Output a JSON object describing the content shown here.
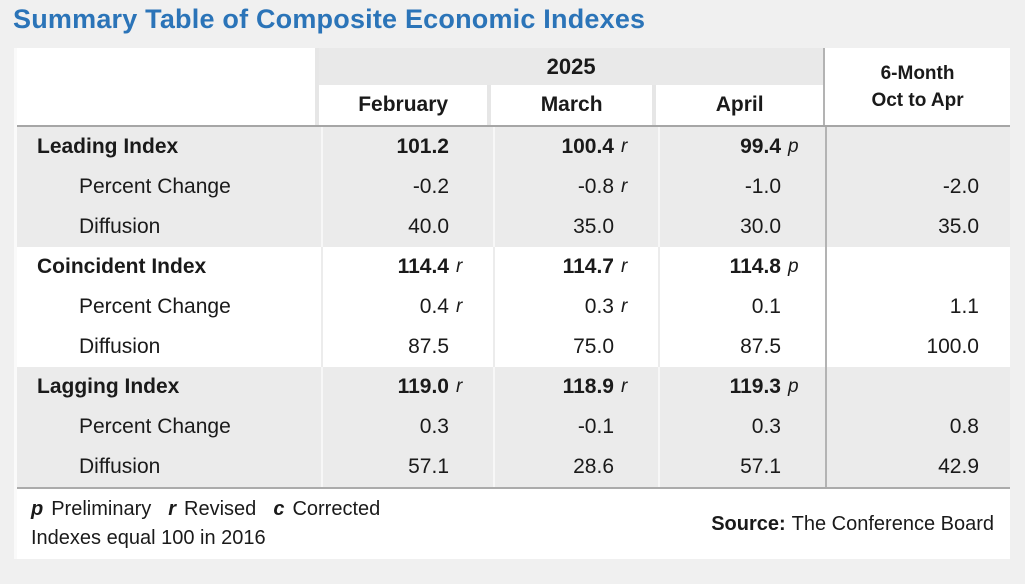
{
  "page": {
    "title": "Summary Table of Composite Economic Indexes"
  },
  "colors": {
    "title_blue": "#2b74b8",
    "band_gray": "#ebebeb",
    "page_bg": "#f0f0f0",
    "column_divider": "#b3b3b3",
    "body_border": "#a6a6a6"
  },
  "table": {
    "year": "2025",
    "months": {
      "feb": "February",
      "mar": "March",
      "apr": "April"
    },
    "six_month": {
      "line1": "6-Month",
      "line2": "Oct to Apr"
    },
    "sections": [
      {
        "rows": [
          {
            "label": "Leading Index",
            "feb": {
              "v": "101.2"
            },
            "mar": {
              "v": "100.4",
              "a": "r"
            },
            "apr": {
              "v": "99.4",
              "a": "p"
            },
            "six": ""
          },
          {
            "label": "Percent Change",
            "feb": {
              "v": "-0.2"
            },
            "mar": {
              "v": "-0.8",
              "a": "r"
            },
            "apr": {
              "v": "-1.0"
            },
            "six": "-2.0"
          },
          {
            "label": "Diffusion",
            "feb": {
              "v": "40.0"
            },
            "mar": {
              "v": "35.0"
            },
            "apr": {
              "v": "30.0"
            },
            "six": "35.0"
          }
        ]
      },
      {
        "rows": [
          {
            "label": "Coincident Index",
            "feb": {
              "v": "114.4",
              "a": "r"
            },
            "mar": {
              "v": "114.7",
              "a": "r"
            },
            "apr": {
              "v": "114.8",
              "a": "p"
            },
            "six": ""
          },
          {
            "label": "Percent Change",
            "feb": {
              "v": "0.4",
              "a": "r"
            },
            "mar": {
              "v": "0.3",
              "a": "r"
            },
            "apr": {
              "v": "0.1"
            },
            "six": "1.1"
          },
          {
            "label": "Diffusion",
            "feb": {
              "v": "87.5"
            },
            "mar": {
              "v": "75.0"
            },
            "apr": {
              "v": "87.5"
            },
            "six": "100.0"
          }
        ]
      },
      {
        "rows": [
          {
            "label": "Lagging Index",
            "feb": {
              "v": "119.0",
              "a": "r"
            },
            "mar": {
              "v": "118.9",
              "a": "r"
            },
            "apr": {
              "v": "119.3",
              "a": "p"
            },
            "six": ""
          },
          {
            "label": "Percent Change",
            "feb": {
              "v": "0.3"
            },
            "mar": {
              "v": "-0.1"
            },
            "apr": {
              "v": "0.3"
            },
            "six": "0.8"
          },
          {
            "label": "Diffusion",
            "feb": {
              "v": "57.1"
            },
            "mar": {
              "v": "28.6"
            },
            "apr": {
              "v": "57.1"
            },
            "six": "42.9"
          }
        ]
      }
    ]
  },
  "footer": {
    "notes": [
      {
        "key": "p",
        "text": "Preliminary"
      },
      {
        "key": "r",
        "text": "Revised"
      },
      {
        "key": "c",
        "text": "Corrected"
      }
    ],
    "line2": "Indexes equal 100 in 2016",
    "source_label": "Source:",
    "source_text": "The Conference Board"
  },
  "chart_data": {
    "type": "table",
    "title": "Summary Table of Composite Economic Indexes",
    "columns": [
      "",
      "February 2025",
      "March 2025",
      "April 2025",
      "6-Month Oct to Apr"
    ],
    "rows": [
      [
        "Leading Index",
        "101.2",
        "100.4 r",
        "99.4 p",
        ""
      ],
      [
        "Percent Change",
        "-0.2",
        "-0.8 r",
        "-1.0",
        "-2.0"
      ],
      [
        "Diffusion",
        "40.0",
        "35.0",
        "30.0",
        "35.0"
      ],
      [
        "Coincident Index",
        "114.4 r",
        "114.7 r",
        "114.8 p",
        ""
      ],
      [
        "Percent Change",
        "0.4 r",
        "0.3 r",
        "0.1",
        "1.1"
      ],
      [
        "Diffusion",
        "87.5",
        "75.0",
        "87.5",
        "100.0"
      ],
      [
        "Lagging Index",
        "119.0 r",
        "118.9 r",
        "119.3 p",
        ""
      ],
      [
        "Percent Change",
        "0.3",
        "-0.1",
        "0.3",
        "0.8"
      ],
      [
        "Diffusion",
        "57.1",
        "28.6",
        "57.1",
        "42.9"
      ]
    ],
    "notes": "p Preliminary, r Revised, c Corrected; Indexes equal 100 in 2016",
    "source": "The Conference Board"
  }
}
